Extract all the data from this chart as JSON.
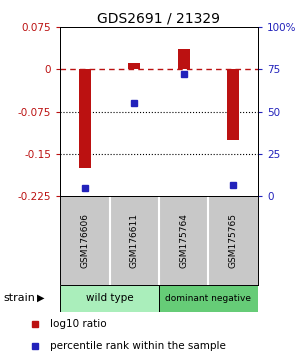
{
  "title": "GDS2691 / 21329",
  "samples": [
    "GSM176606",
    "GSM176611",
    "GSM175764",
    "GSM175765"
  ],
  "log10_ratio": [
    -0.175,
    0.01,
    0.035,
    -0.125
  ],
  "percentile_rank": [
    5,
    55,
    72,
    7
  ],
  "ylim_left": [
    -0.225,
    0.075
  ],
  "ylim_right": [
    0,
    100
  ],
  "yticks_left": [
    0.075,
    0,
    -0.075,
    -0.15,
    -0.225
  ],
  "ytick_labels_left": [
    "0.075",
    "0",
    "-0.075",
    "-0.15",
    "-0.225"
  ],
  "yticks_right": [
    100,
    75,
    50,
    25,
    0
  ],
  "ytick_labels_right": [
    "100%",
    "75",
    "50",
    "25",
    "0"
  ],
  "hlines": [
    -0.075,
    -0.15
  ],
  "dashed_line": 0,
  "bar_color": "#bb1111",
  "dot_color": "#2222bb",
  "bar_width": 0.25,
  "groups": [
    {
      "label": "wild type",
      "samples": [
        0,
        1
      ],
      "color": "#aaeebb"
    },
    {
      "label": "dominant negative",
      "samples": [
        2,
        3
      ],
      "color": "#66cc77"
    }
  ],
  "group_label": "strain",
  "legend_bar_label": "log10 ratio",
  "legend_dot_label": "percentile rank within the sample",
  "bg_color": "#ffffff",
  "plot_bg": "#ffffff",
  "sample_box_color": "#c8c8c8",
  "title_fontsize": 10,
  "tick_fontsize": 7.5,
  "legend_fontsize": 7.5
}
